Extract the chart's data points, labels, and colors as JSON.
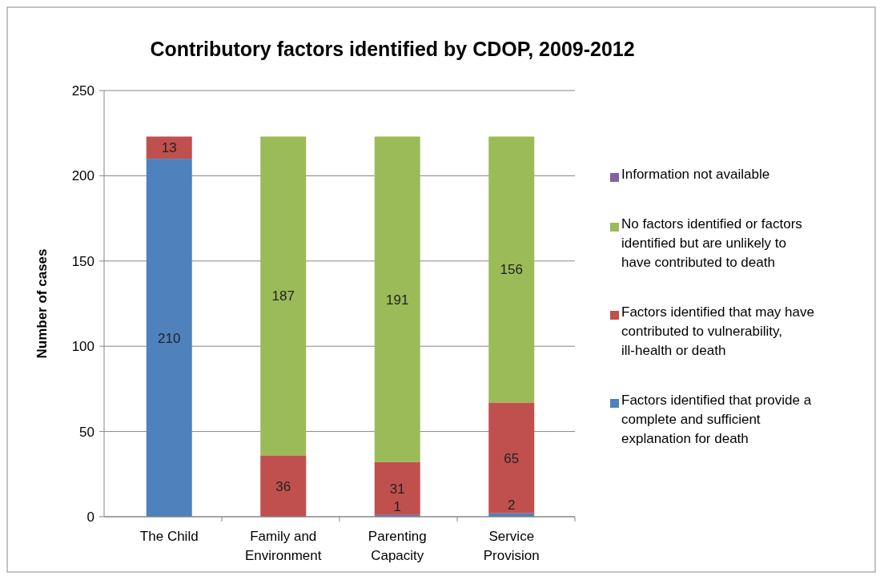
{
  "chart_data": {
    "type": "bar",
    "stacked": true,
    "title": "Contributory factors identified by CDOP, 2009-2012",
    "ylabel": "Number of cases",
    "categories": [
      "The Child",
      "Family and Environment",
      "Parenting Capacity",
      "Service Provision"
    ],
    "series": [
      {
        "name": "Factors identified that provide a complete and sufficient explanation for death",
        "color": "#4f81bd",
        "values": [
          210,
          0,
          1,
          2
        ],
        "value_labels": [
          "210",
          null,
          "1",
          "2"
        ]
      },
      {
        "name": "Factors identified that may have contributed to vulnerability, ill-health or death",
        "color": "#c0504d",
        "values": [
          13,
          36,
          31,
          65
        ],
        "value_labels": [
          "13",
          "36",
          "31",
          "65"
        ]
      },
      {
        "name": "No factors identified or factors identified but are unlikely to have contributed to death",
        "color": "#9bbb59",
        "values": [
          0,
          187,
          191,
          156
        ],
        "value_labels": [
          null,
          "187",
          "191",
          "156"
        ]
      },
      {
        "name": "Information not available",
        "color": "#8064a2",
        "values": [
          0,
          0,
          0,
          0
        ],
        "value_labels": [
          null,
          null,
          null,
          null
        ]
      }
    ],
    "ylim": [
      0,
      250
    ],
    "yticks": [
      0,
      50,
      100,
      150,
      200,
      250
    ],
    "grid": "y",
    "legend": "right"
  }
}
